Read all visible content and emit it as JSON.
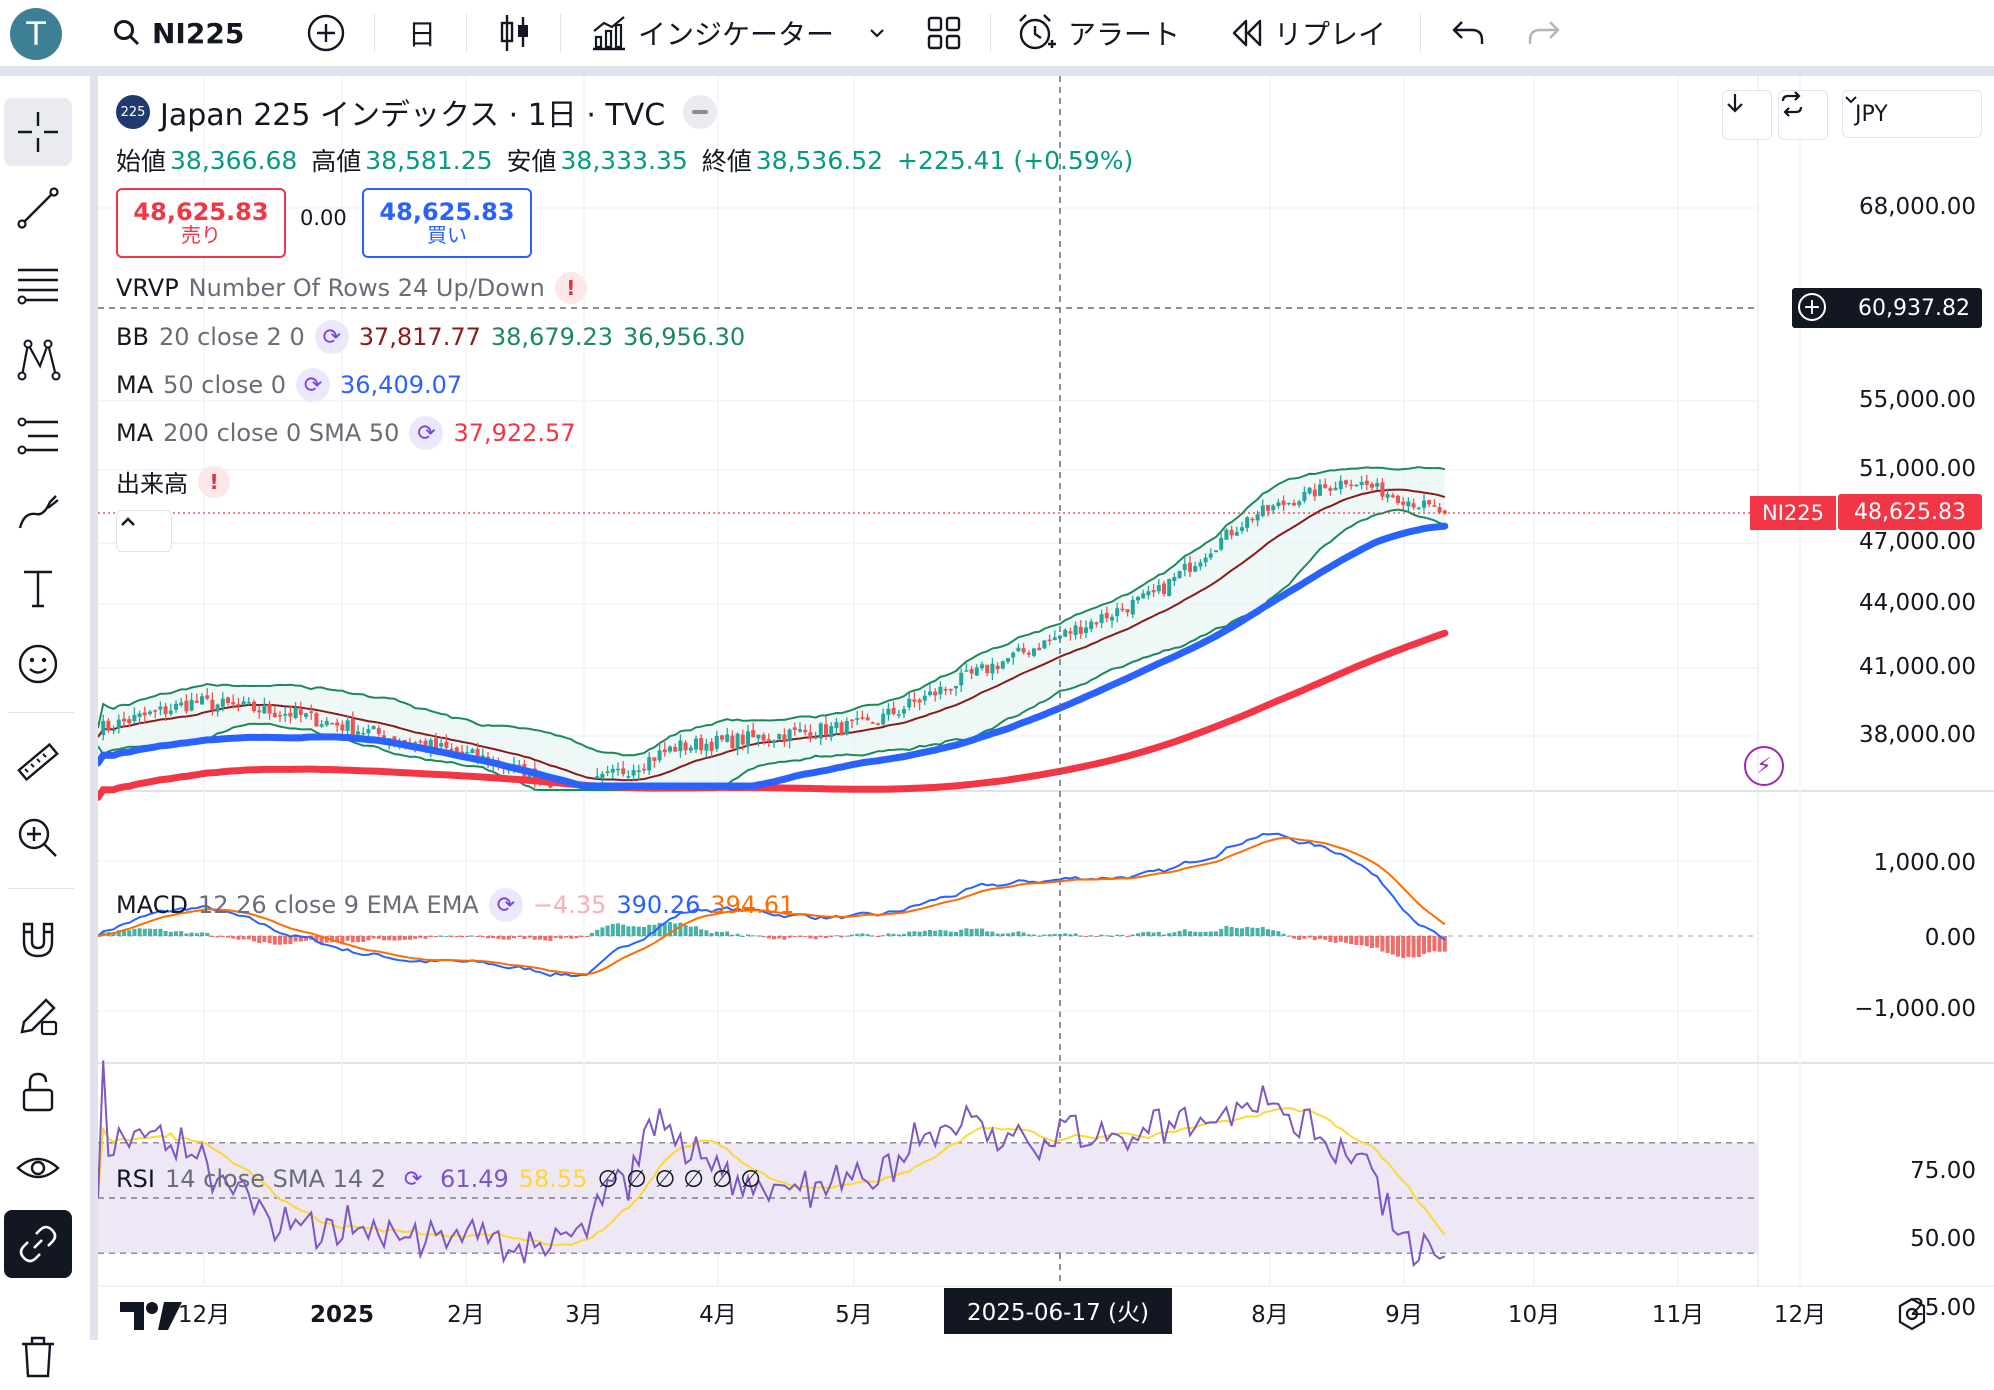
{
  "topbar": {
    "avatar_letter": "T",
    "symbol": "NI225",
    "interval": "日",
    "indicators_label": "インジケーター",
    "alert_label": "アラート",
    "replay_label": "リプレイ"
  },
  "header": {
    "title": "Japan 225 インデックス · 1日 · TVC",
    "ohlc": {
      "open_label": "始値",
      "open": "38,366.68",
      "high_label": "高値",
      "high": "38,581.25",
      "low_label": "安値",
      "low": "38,333.35",
      "close_label": "終値",
      "close": "38,536.52",
      "change": "+225.41 (+0.59%)"
    },
    "sell": {
      "price": "48,625.83",
      "label": "売り"
    },
    "spread": "0.00",
    "buy": {
      "price": "48,625.83",
      "label": "買い"
    },
    "currency": "JPY"
  },
  "legends": {
    "vrvp": {
      "name": "VRVP",
      "params": "Number Of Rows 24 Up/Down"
    },
    "bb": {
      "name": "BB",
      "params": "20 close 2 0",
      "v1": "37,817.77",
      "v2": "38,679.23",
      "v3": "36,956.30"
    },
    "ma50": {
      "name": "MA",
      "params": "50 close 0",
      "v1": "36,409.07"
    },
    "ma200": {
      "name": "MA",
      "params": "200 close 0 SMA 50",
      "v1": "37,922.57"
    },
    "volume": {
      "name": "出来高"
    },
    "macd": {
      "name": "MACD",
      "params": "12 26 close 9 EMA EMA",
      "v1": "−4.35",
      "v2": "390.26",
      "v3": "394.61"
    },
    "rsi": {
      "name": "RSI",
      "params": "14 close SMA 14 2",
      "v1": "61.49",
      "v2": "58.55",
      "v3": "∅ ∅ ∅ ∅ ∅ ∅"
    }
  },
  "price_axis": [
    "68,000.00",
    "55,000.00",
    "51,000.00",
    "47,000.00",
    "44,000.00",
    "41,000.00",
    "38,000.00"
  ],
  "crosshair_price": "60,937.82",
  "last_price_symbol": "NI225",
  "last_price": "48,625.83",
  "macd_axis": [
    "1,000.00",
    "0.00",
    "−1,000.00"
  ],
  "rsi_axis": [
    "75.00",
    "50.00",
    "25.00"
  ],
  "date_axis": [
    "12月",
    "2025",
    "2月",
    "3月",
    "4月",
    "5月",
    "8月",
    "9月",
    "10月",
    "11月",
    "12月"
  ],
  "crosshair_date": "2025-06-17 (火)",
  "colors": {
    "up": "#26a69a",
    "down": "#ef5350",
    "ma50": "#2962ff",
    "ma200": "#f23645",
    "bb_band": "#1b8a5a",
    "bb_basis": "#8b1a1a",
    "macd": "#2962ff",
    "signal": "#ff6d00",
    "rsi": "#7e57c2",
    "rsi_ma": "#fdd835",
    "rsi_band": "#ede7f6"
  },
  "chart_data": {
    "type": "candlestick",
    "title": "Japan 225 インデックス · 1日 · TVC",
    "x_start": "2024-11",
    "x_end": "2025-11",
    "ylim": [
      36000,
      70000
    ],
    "close_monthly": [
      38300,
      39500,
      39000,
      38000,
      37000,
      35600,
      37500,
      38000,
      38500,
      40500,
      42500,
      44500,
      48500,
      50500,
      48625.83
    ],
    "series": [
      {
        "name": "MA 50",
        "last": 36409.07
      },
      {
        "name": "MA 200",
        "last": 37922.57
      }
    ],
    "macd": {
      "macd_last": 390.26,
      "signal_last": 394.61,
      "hist_last": -4.35,
      "ylim": [
        -1600,
        1600
      ]
    },
    "rsi": {
      "last": 61.49,
      "ma_last": 58.55,
      "ylim": [
        0,
        100
      ],
      "bands": [
        30,
        70
      ]
    }
  }
}
